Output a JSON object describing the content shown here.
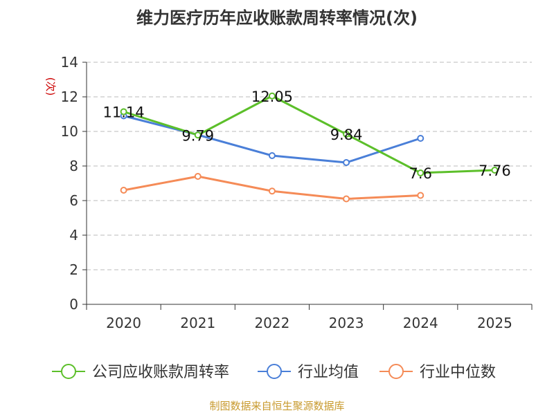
{
  "chart_data": {
    "type": "line",
    "title": "维力医疗历年应收账款周转率情况(次)",
    "ylabel": "(次)",
    "xlabel": "",
    "ylim": [
      0,
      14
    ],
    "yticks": [
      0,
      2,
      4,
      6,
      8,
      10,
      12,
      14
    ],
    "categories": [
      "2020",
      "2021",
      "2022",
      "2023",
      "2024",
      "2025"
    ],
    "series": [
      {
        "name": "公司应收账款周转率",
        "color": "#5cbf2a",
        "values": [
          11.14,
          9.79,
          12.05,
          9.84,
          7.6,
          7.76
        ],
        "labels": [
          "11.14",
          "9.79",
          "12.05",
          "9.84",
          "7.6",
          "7.76"
        ]
      },
      {
        "name": "行业均值",
        "color": "#4a7fd8",
        "values": [
          10.9,
          9.8,
          8.6,
          8.2,
          9.6,
          null
        ]
      },
      {
        "name": "行业中位数",
        "color": "#f58b57",
        "values": [
          6.6,
          7.4,
          6.55,
          6.1,
          6.3,
          null
        ]
      }
    ],
    "legend_position": "bottom",
    "grid": true
  },
  "footer": {
    "source": "制图数据来自恒生聚源数据库"
  }
}
